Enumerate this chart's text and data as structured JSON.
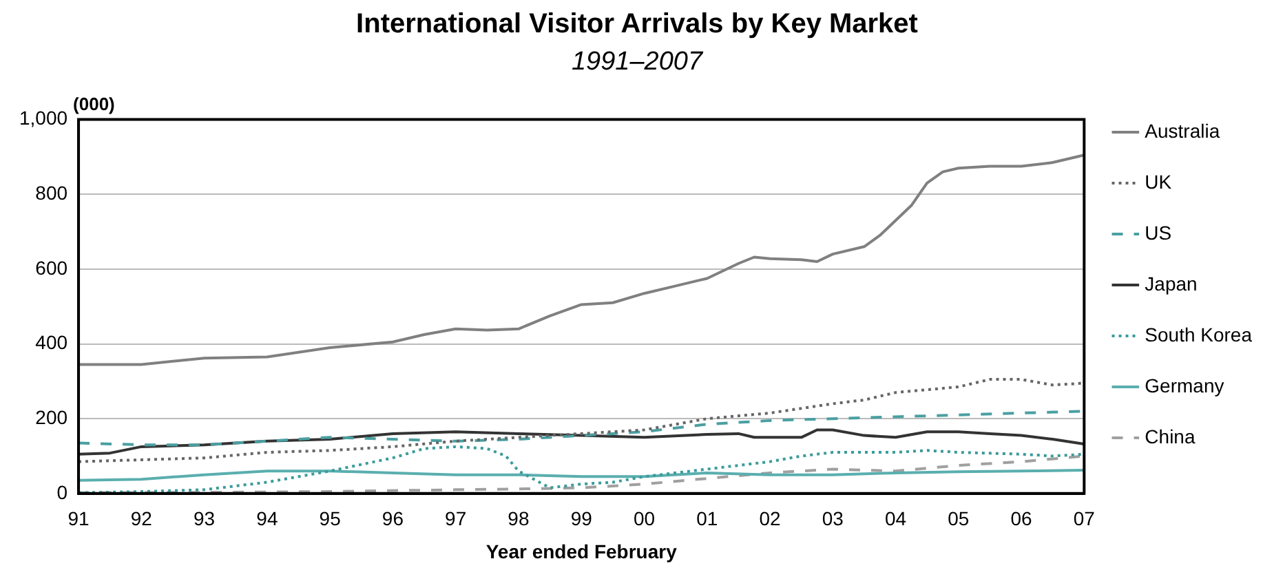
{
  "chart_data": {
    "type": "line",
    "title": "International Visitor Arrivals by Key Market",
    "subtitle": "1991–2007",
    "ylabel": "(000)",
    "xlabel": "Year ended February",
    "xlim": [
      1991,
      2007
    ],
    "xticks": [
      {
        "value": 1991,
        "label": "91"
      },
      {
        "value": 1992,
        "label": "92"
      },
      {
        "value": 1993,
        "label": "93"
      },
      {
        "value": 1994,
        "label": "94"
      },
      {
        "value": 1995,
        "label": "95"
      },
      {
        "value": 1996,
        "label": "96"
      },
      {
        "value": 1997,
        "label": "97"
      },
      {
        "value": 1998,
        "label": "98"
      },
      {
        "value": 1999,
        "label": "99"
      },
      {
        "value": 2000,
        "label": "00"
      },
      {
        "value": 2001,
        "label": "01"
      },
      {
        "value": 2002,
        "label": "02"
      },
      {
        "value": 2003,
        "label": "03"
      },
      {
        "value": 2004,
        "label": "04"
      },
      {
        "value": 2005,
        "label": "05"
      },
      {
        "value": 2006,
        "label": "06"
      },
      {
        "value": 2007,
        "label": "07"
      }
    ],
    "ylim": [
      0,
      1000
    ],
    "yticks": [
      0,
      200,
      400,
      600,
      800,
      {
        "value": 1000,
        "label": "1,000"
      }
    ],
    "grid": "y",
    "legend": "right",
    "marker": "none",
    "series": [
      {
        "name": "Australia",
        "color": "#808080",
        "line_style": "solid",
        "x": [
          1991,
          1992,
          1993,
          1994,
          1995,
          1996,
          1996.5,
          1997,
          1997.5,
          1998,
          1998.5,
          1999,
          1999.5,
          2000,
          2000.5,
          2001,
          2001.5,
          2001.75,
          2002,
          2002.5,
          2002.75,
          2003,
          2003.5,
          2003.75,
          2004,
          2004.25,
          2004.5,
          2004.75,
          2005,
          2005.5,
          2006,
          2006.5,
          2007
        ],
        "values": [
          345,
          345,
          362,
          365,
          390,
          405,
          425,
          440,
          437,
          440,
          475,
          505,
          510,
          535,
          555,
          575,
          615,
          632,
          628,
          625,
          620,
          640,
          660,
          690,
          730,
          770,
          830,
          860,
          870,
          875,
          875,
          885,
          905
        ]
      },
      {
        "name": "UK",
        "color": "#666666",
        "line_style": "dotted",
        "x": [
          1991,
          1992,
          1993,
          1994,
          1995,
          1996,
          1997,
          1998,
          1999,
          2000,
          2001,
          2002,
          2003,
          2003.5,
          2004,
          2005,
          2005.5,
          2006,
          2006.5,
          2007
        ],
        "values": [
          85,
          90,
          95,
          110,
          115,
          125,
          140,
          150,
          160,
          170,
          200,
          215,
          240,
          250,
          270,
          285,
          305,
          305,
          290,
          295
        ]
      },
      {
        "name": "US",
        "color": "#4a9fa0",
        "line_style": "dashed",
        "x": [
          1991,
          1992,
          1993,
          1994,
          1995,
          1996,
          1997,
          1998,
          1999,
          2000,
          2001,
          2002,
          2003,
          2004,
          2005,
          2006,
          2007
        ],
        "values": [
          135,
          130,
          130,
          140,
          150,
          145,
          140,
          145,
          155,
          165,
          185,
          195,
          200,
          205,
          210,
          215,
          220
        ]
      },
      {
        "name": "Japan",
        "color": "#333333",
        "line_style": "solid",
        "x": [
          1991,
          1991.5,
          1992,
          1993,
          1994,
          1995,
          1996,
          1997,
          1998,
          1999,
          2000,
          2001,
          2001.5,
          2001.75,
          2002,
          2002.5,
          2002.75,
          2003,
          2003.5,
          2004,
          2004.5,
          2005,
          2005.5,
          2006,
          2006.5,
          2007
        ],
        "values": [
          105,
          108,
          125,
          130,
          140,
          145,
          160,
          165,
          160,
          155,
          150,
          158,
          160,
          150,
          150,
          150,
          170,
          170,
          155,
          150,
          165,
          165,
          160,
          155,
          145,
          132
        ]
      },
      {
        "name": "South Korea",
        "color": "#3a9b9b",
        "line_style": "dotted",
        "x": [
          1991,
          1992,
          1993,
          1994,
          1995,
          1996,
          1996.5,
          1997,
          1997.5,
          1997.8,
          1998,
          1998.5,
          1999,
          1999.5,
          2000,
          2001,
          2002,
          2002.5,
          2003,
          2004,
          2004.5,
          2005,
          2006,
          2006.5,
          2007
        ],
        "values": [
          2,
          5,
          10,
          30,
          60,
          95,
          120,
          125,
          120,
          100,
          60,
          15,
          25,
          30,
          45,
          65,
          85,
          100,
          110,
          110,
          115,
          110,
          105,
          100,
          105
        ]
      },
      {
        "name": "Germany",
        "color": "#5aaeae",
        "line_style": "solid",
        "x": [
          1991,
          1992,
          1993,
          1994,
          1995,
          1996,
          1997,
          1998,
          1999,
          2000,
          2001,
          2002,
          2003,
          2004,
          2005,
          2006,
          2007
        ],
        "values": [
          35,
          38,
          50,
          60,
          60,
          55,
          50,
          50,
          45,
          45,
          55,
          50,
          50,
          55,
          58,
          60,
          62
        ]
      },
      {
        "name": "China",
        "color": "#a0a0a0",
        "line_style": "dashed",
        "x": [
          1991,
          1993,
          1995,
          1997,
          1998,
          1999,
          2000,
          2001,
          2002,
          2003,
          2004,
          2005,
          2006,
          2007
        ],
        "values": [
          2,
          3,
          5,
          10,
          12,
          15,
          25,
          40,
          55,
          65,
          60,
          75,
          85,
          100
        ]
      }
    ]
  }
}
